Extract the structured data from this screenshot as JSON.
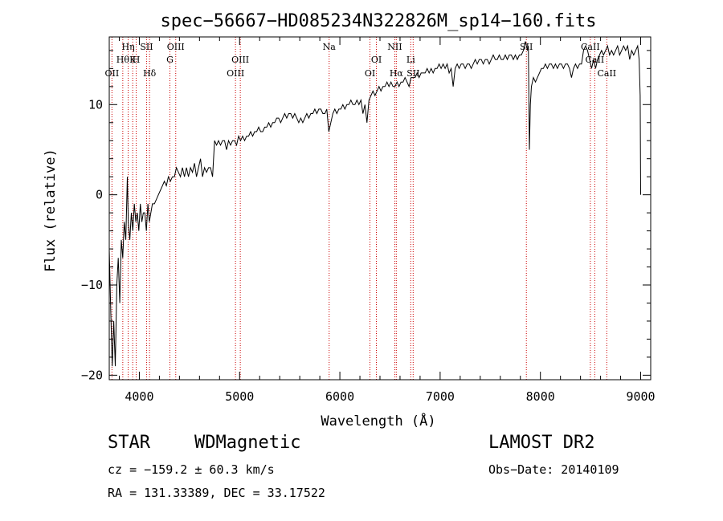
{
  "chart_data": {
    "type": "line",
    "title": "spec−56667−HD085234N322826M_sp14−160.fits",
    "xlabel": "Wavelength (Å)",
    "ylabel": "Flux (relative)",
    "xlim": [
      3700,
      9100
    ],
    "ylim": [
      -20.5,
      17.5
    ],
    "x_ticks": [
      4000,
      5000,
      6000,
      7000,
      8000,
      9000
    ],
    "y_ticks": [
      -20,
      -10,
      0,
      10
    ],
    "x_minor_step": 200,
    "y_minor_step": 2,
    "grid": false,
    "line_color": "#000000",
    "marker_color": "#cc0000",
    "series": [
      {
        "points": [
          [
            3700,
            -6
          ],
          [
            3715,
            -13
          ],
          [
            3730,
            -19
          ],
          [
            3745,
            -14
          ],
          [
            3760,
            -19
          ],
          [
            3775,
            -10
          ],
          [
            3790,
            -7
          ],
          [
            3805,
            -12
          ],
          [
            3820,
            -5
          ],
          [
            3835,
            -7
          ],
          [
            3850,
            -3
          ],
          [
            3865,
            -5
          ],
          [
            3880,
            2
          ],
          [
            3890,
            -3
          ],
          [
            3905,
            -5
          ],
          [
            3920,
            -2
          ],
          [
            3935,
            -4
          ],
          [
            3950,
            -1
          ],
          [
            3965,
            -3
          ],
          [
            3980,
            -2
          ],
          [
            3995,
            -4
          ],
          [
            4010,
            -1
          ],
          [
            4025,
            -3
          ],
          [
            4040,
            -2
          ],
          [
            4055,
            -2
          ],
          [
            4070,
            -4
          ],
          [
            4085,
            -1
          ],
          [
            4100,
            -3
          ],
          [
            4115,
            -2
          ],
          [
            4130,
            -1
          ],
          [
            4150,
            -1
          ],
          [
            4170,
            -0.5
          ],
          [
            4190,
            0
          ],
          [
            4210,
            0.5
          ],
          [
            4230,
            1
          ],
          [
            4250,
            1.5
          ],
          [
            4270,
            1
          ],
          [
            4290,
            2
          ],
          [
            4310,
            1.5
          ],
          [
            4330,
            2
          ],
          [
            4350,
            2
          ],
          [
            4370,
            3
          ],
          [
            4390,
            2.5
          ],
          [
            4410,
            2
          ],
          [
            4430,
            3
          ],
          [
            4450,
            2
          ],
          [
            4470,
            3
          ],
          [
            4490,
            2
          ],
          [
            4510,
            3
          ],
          [
            4530,
            2.5
          ],
          [
            4550,
            3.5
          ],
          [
            4570,
            2
          ],
          [
            4590,
            3
          ],
          [
            4610,
            4
          ],
          [
            4630,
            2
          ],
          [
            4650,
            3
          ],
          [
            4670,
            2.5
          ],
          [
            4690,
            3
          ],
          [
            4710,
            3
          ],
          [
            4730,
            2
          ],
          [
            4750,
            6
          ],
          [
            4770,
            5.5
          ],
          [
            4790,
            6
          ],
          [
            4810,
            5.5
          ],
          [
            4830,
            6
          ],
          [
            4850,
            6
          ],
          [
            4870,
            5
          ],
          [
            4890,
            6
          ],
          [
            4910,
            5.5
          ],
          [
            4930,
            6
          ],
          [
            4950,
            6
          ],
          [
            4970,
            5.5
          ],
          [
            4990,
            6.5
          ],
          [
            5010,
            6
          ],
          [
            5030,
            6.5
          ],
          [
            5050,
            6
          ],
          [
            5070,
            6.5
          ],
          [
            5090,
            6.5
          ],
          [
            5110,
            7
          ],
          [
            5130,
            6.5
          ],
          [
            5150,
            7
          ],
          [
            5170,
            7
          ],
          [
            5190,
            7.5
          ],
          [
            5210,
            7
          ],
          [
            5230,
            7
          ],
          [
            5250,
            7.5
          ],
          [
            5270,
            7.5
          ],
          [
            5290,
            8
          ],
          [
            5310,
            7.5
          ],
          [
            5330,
            8
          ],
          [
            5350,
            8
          ],
          [
            5370,
            8.5
          ],
          [
            5390,
            8.5
          ],
          [
            5410,
            8
          ],
          [
            5430,
            8.5
          ],
          [
            5450,
            9
          ],
          [
            5470,
            8.5
          ],
          [
            5490,
            9
          ],
          [
            5510,
            9
          ],
          [
            5530,
            8.5
          ],
          [
            5550,
            9
          ],
          [
            5570,
            8.5
          ],
          [
            5590,
            8
          ],
          [
            5610,
            8.5
          ],
          [
            5630,
            8
          ],
          [
            5650,
            8.5
          ],
          [
            5670,
            9
          ],
          [
            5690,
            8.5
          ],
          [
            5710,
            9
          ],
          [
            5730,
            9
          ],
          [
            5750,
            9.5
          ],
          [
            5770,
            9
          ],
          [
            5790,
            9.5
          ],
          [
            5810,
            9.5
          ],
          [
            5830,
            9
          ],
          [
            5850,
            9
          ],
          [
            5870,
            9.5
          ],
          [
            5890,
            7
          ],
          [
            5910,
            8
          ],
          [
            5930,
            9
          ],
          [
            5950,
            9.5
          ],
          [
            5970,
            9
          ],
          [
            5990,
            9.5
          ],
          [
            6010,
            9.5
          ],
          [
            6030,
            10
          ],
          [
            6050,
            9.5
          ],
          [
            6070,
            10
          ],
          [
            6090,
            10
          ],
          [
            6110,
            10.5
          ],
          [
            6130,
            10
          ],
          [
            6150,
            10
          ],
          [
            6170,
            10.5
          ],
          [
            6190,
            10
          ],
          [
            6210,
            10.5
          ],
          [
            6230,
            9
          ],
          [
            6250,
            10
          ],
          [
            6270,
            8
          ],
          [
            6290,
            10.5
          ],
          [
            6310,
            11
          ],
          [
            6330,
            11.5
          ],
          [
            6350,
            11
          ],
          [
            6370,
            11.5
          ],
          [
            6390,
            12
          ],
          [
            6410,
            11.5
          ],
          [
            6430,
            12
          ],
          [
            6450,
            12
          ],
          [
            6470,
            12.5
          ],
          [
            6490,
            12
          ],
          [
            6510,
            12.5
          ],
          [
            6530,
            12
          ],
          [
            6550,
            12
          ],
          [
            6570,
            12.5
          ],
          [
            6590,
            12
          ],
          [
            6610,
            12.5
          ],
          [
            6630,
            12.5
          ],
          [
            6650,
            13
          ],
          [
            6670,
            12.5
          ],
          [
            6690,
            12
          ],
          [
            6710,
            13
          ],
          [
            6730,
            13
          ],
          [
            6750,
            13
          ],
          [
            6770,
            13.5
          ],
          [
            6790,
            13
          ],
          [
            6810,
            13.5
          ],
          [
            6830,
            13.5
          ],
          [
            6850,
            13.5
          ],
          [
            6870,
            14
          ],
          [
            6890,
            13.5
          ],
          [
            6910,
            14
          ],
          [
            6930,
            13.5
          ],
          [
            6950,
            14
          ],
          [
            6970,
            14
          ],
          [
            6990,
            14.5
          ],
          [
            7010,
            14
          ],
          [
            7030,
            14.5
          ],
          [
            7050,
            14
          ],
          [
            7070,
            14.5
          ],
          [
            7090,
            13.5
          ],
          [
            7110,
            14
          ],
          [
            7130,
            12
          ],
          [
            7150,
            14
          ],
          [
            7170,
            14.5
          ],
          [
            7190,
            14
          ],
          [
            7210,
            14.5
          ],
          [
            7230,
            14.5
          ],
          [
            7250,
            14
          ],
          [
            7270,
            14.5
          ],
          [
            7290,
            14.5
          ],
          [
            7310,
            14
          ],
          [
            7330,
            14.5
          ],
          [
            7350,
            15
          ],
          [
            7370,
            14.5
          ],
          [
            7390,
            15
          ],
          [
            7410,
            15
          ],
          [
            7430,
            14.5
          ],
          [
            7450,
            15
          ],
          [
            7470,
            15
          ],
          [
            7490,
            14.5
          ],
          [
            7510,
            15
          ],
          [
            7530,
            15.5
          ],
          [
            7550,
            15
          ],
          [
            7570,
            15
          ],
          [
            7590,
            15.5
          ],
          [
            7610,
            15
          ],
          [
            7630,
            15
          ],
          [
            7650,
            15.5
          ],
          [
            7670,
            15
          ],
          [
            7690,
            15.5
          ],
          [
            7710,
            15.5
          ],
          [
            7730,
            15
          ],
          [
            7750,
            15.5
          ],
          [
            7770,
            15
          ],
          [
            7790,
            15.5
          ],
          [
            7810,
            15.5
          ],
          [
            7830,
            16
          ],
          [
            7850,
            17
          ],
          [
            7870,
            16
          ],
          [
            7880,
            16.5
          ],
          [
            7890,
            5
          ],
          [
            7900,
            10
          ],
          [
            7910,
            12
          ],
          [
            7930,
            13
          ],
          [
            7950,
            12.5
          ],
          [
            7970,
            13
          ],
          [
            7990,
            13.5
          ],
          [
            8010,
            14
          ],
          [
            8030,
            14
          ],
          [
            8050,
            14.5
          ],
          [
            8070,
            14
          ],
          [
            8090,
            14.5
          ],
          [
            8110,
            14.5
          ],
          [
            8130,
            14
          ],
          [
            8150,
            14.5
          ],
          [
            8170,
            14
          ],
          [
            8190,
            14.5
          ],
          [
            8210,
            14.5
          ],
          [
            8230,
            14
          ],
          [
            8250,
            14.5
          ],
          [
            8270,
            14.5
          ],
          [
            8290,
            14
          ],
          [
            8310,
            13
          ],
          [
            8330,
            14
          ],
          [
            8350,
            14.5
          ],
          [
            8370,
            14
          ],
          [
            8390,
            14.5
          ],
          [
            8410,
            14.5
          ],
          [
            8430,
            16
          ],
          [
            8450,
            16.5
          ],
          [
            8470,
            16
          ],
          [
            8490,
            15
          ],
          [
            8510,
            14
          ],
          [
            8530,
            15
          ],
          [
            8550,
            14
          ],
          [
            8570,
            15
          ],
          [
            8590,
            15.5
          ],
          [
            8610,
            16
          ],
          [
            8630,
            15.5
          ],
          [
            8650,
            16
          ],
          [
            8670,
            16.5
          ],
          [
            8690,
            15.5
          ],
          [
            8710,
            16
          ],
          [
            8730,
            15.5
          ],
          [
            8750,
            16
          ],
          [
            8770,
            16.5
          ],
          [
            8790,
            15.5
          ],
          [
            8810,
            16
          ],
          [
            8830,
            16.5
          ],
          [
            8850,
            16
          ],
          [
            8870,
            16.5
          ],
          [
            8890,
            15
          ],
          [
            8910,
            16
          ],
          [
            8930,
            15.5
          ],
          [
            8950,
            16
          ],
          [
            8970,
            16.5
          ],
          [
            8985,
            15
          ],
          [
            8995,
            11
          ],
          [
            9000,
            0
          ]
        ]
      }
    ],
    "line_markers": [
      {
        "x": 3727,
        "row": 3,
        "label": "OII"
      },
      {
        "x": 3835,
        "row": 2,
        "label": "Hθ"
      },
      {
        "x": 3889,
        "row": 1,
        "label": "Hη"
      },
      {
        "x": 3934,
        "row": 2,
        "label": "K"
      },
      {
        "x": 3969,
        "row": 2,
        "label": "H"
      },
      {
        "x": 4072,
        "row": 1,
        "label": "SII"
      },
      {
        "x": 4102,
        "row": 3,
        "label": "Hδ"
      },
      {
        "x": 4305,
        "row": 2,
        "label": "G"
      },
      {
        "x": 4363,
        "row": 1,
        "label": "OIII"
      },
      {
        "x": 4959,
        "row": 3,
        "label": "OIII"
      },
      {
        "x": 5007,
        "row": 2,
        "label": "OIII"
      },
      {
        "x": 5893,
        "row": 1,
        "label": "Na"
      },
      {
        "x": 6300,
        "row": 3,
        "label": "OI"
      },
      {
        "x": 6364,
        "row": 2,
        "label": "OI"
      },
      {
        "x": 6548,
        "row": 1,
        "label": "NII"
      },
      {
        "x": 6563,
        "row": 3,
        "label": "Hα"
      },
      {
        "x": 6707,
        "row": 2,
        "label": "Li"
      },
      {
        "x": 6731,
        "row": 3,
        "label": "SII"
      },
      {
        "x": 7860,
        "row": 1,
        "label": "SII"
      },
      {
        "x": 8498,
        "row": 1,
        "label": "CaII"
      },
      {
        "x": 8542,
        "row": 2,
        "label": "CaII"
      },
      {
        "x": 8662,
        "row": 3,
        "label": "CaII"
      }
    ]
  },
  "info": {
    "class": "STAR",
    "subclass": "WDMagnetic",
    "survey": "LAMOST DR2",
    "cz": "cz = −159.2 ± 60.3 km/s",
    "obs_date": "Obs−Date: 20140109",
    "radec": "RA = 131.33389, DEC =  33.17522"
  }
}
